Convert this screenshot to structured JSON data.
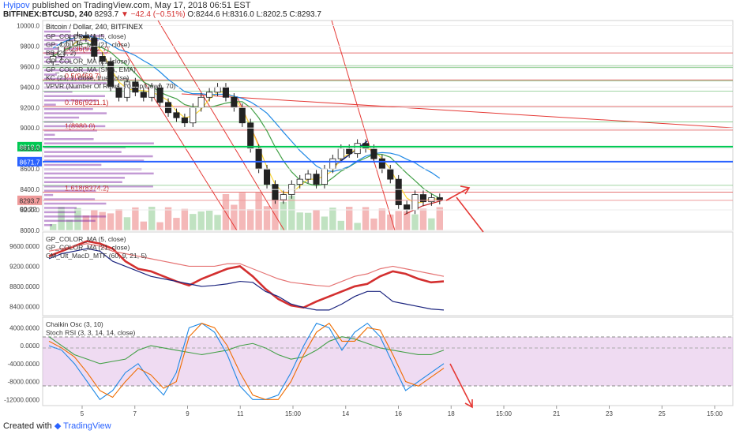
{
  "header": {
    "author": "Hyipov",
    "published": "published on TradingView.com, May 17, 2018 06:51 EST",
    "symbol": "BITFINEX:BTCUSD, 240",
    "last": "8293.7",
    "change": "−42.4 (−0.51%)",
    "ohlc": "O:8244.6 H:8316.0 L:8202.5 C:8293.7"
  },
  "footer": {
    "created_with": "Created with",
    "brand": "TradingView"
  },
  "colors": {
    "up": "#2e7d32",
    "down": "#c62828",
    "blue_level": "#2962ff",
    "green_level": "#00c853",
    "red_level": "#d32f2f",
    "stoch_band": "#e1bee7"
  },
  "chart_data": [
    {
      "type": "candlestick",
      "title": "Bitcoin / Dollar, 240, BITFINEX",
      "indicator_labels": [
        "GP_COLOR_MA (5, close)",
        "GP_COLOR_MA (21, close)",
        "BB (20, 2)",
        "GP_COLOR_MA (21, close)",
        "GP_COLOR_MA (SMA, EMA)",
        "KC (21, 1, close, true, false)",
        "VPVR (Number Of Rows, 70, Up/Down, 70)"
      ],
      "y_ticks": [
        10000.0,
        9800.0,
        9600.0,
        9400.0,
        9200.0,
        9000.0,
        8800.0,
        8600.0,
        8400.0,
        8200.0,
        8000.0
      ],
      "ylim": [
        8000,
        10050
      ],
      "x_ticks": [
        "5",
        "7",
        "9",
        "11",
        "15:00",
        "14",
        "16",
        "18",
        "15:00",
        "21",
        "23",
        "25",
        "15:00"
      ],
      "fib_levels": [
        {
          "label": "0.236(9732.7)",
          "value": 9732.7
        },
        {
          "label": "0.5(9469.7)",
          "value": 9469.7
        },
        {
          "label": "0.786(9211.1)",
          "value": 9211.1
        },
        {
          "label": "1(8980.0)",
          "value": 8980.0
        },
        {
          "label": "1.618(8374.2)",
          "value": 8374.2
        }
      ],
      "price_flags": [
        {
          "label": "8818.0",
          "value": 8818.0,
          "color": "#00c853"
        },
        {
          "label": "8671.7",
          "value": 8671.7,
          "color": "#2962ff"
        },
        {
          "label": "8293.7",
          "value": 8293.7,
          "color": "#ef9a9a"
        }
      ],
      "countdown": "00:22",
      "close": [
        9700,
        9800,
        9850,
        9900,
        9880,
        9700,
        9650,
        9400,
        9300,
        9450,
        9350,
        9300,
        9400,
        9250,
        9150,
        9100,
        9050,
        9200,
        9300,
        9350,
        9400,
        9300,
        9200,
        9050,
        8800,
        8600,
        8450,
        8300,
        8350,
        8450,
        8500,
        8550,
        8450,
        8600,
        8700,
        8800,
        8750,
        8850,
        8800,
        8700,
        8600,
        8500,
        8250,
        8200,
        8350,
        8280,
        8320,
        8293.7
      ]
    },
    {
      "type": "line",
      "title": "",
      "indicator_labels": [
        "GP_COLOR_MA (5, close)",
        "GP_COLOR_MA (21, close)",
        "CM_Ult_MacD_MTF (60, 9, 21, 5)"
      ],
      "y_ticks": [
        9600.0,
        9200.0,
        8800.0,
        8400.0
      ],
      "ylim": [
        8250,
        9850
      ],
      "series": [
        {
          "values": [
            9400,
            9500,
            9600,
            9700,
            9650,
            9550,
            9300,
            9150,
            9100,
            9000,
            8900,
            8820,
            8950,
            9050,
            9150,
            9200,
            9000,
            8750,
            8550,
            8420,
            8380,
            8500,
            8600,
            8700,
            8800,
            8850,
            9000,
            9100,
            9050,
            8950,
            8880,
            8900
          ]
        },
        {
          "values": [
            9500,
            9550,
            9600,
            9650,
            9600,
            9500,
            9450,
            9400,
            9350,
            9300,
            9250,
            9200,
            9200,
            9200,
            9250,
            9250,
            9150,
            9050,
            8950,
            8880,
            8850,
            8820,
            8800,
            8900,
            9000,
            9050,
            9150,
            9200,
            9150,
            9100,
            9050,
            9000
          ]
        },
        {
          "values": [
            9350,
            9450,
            9500,
            9550,
            9500,
            9300,
            9200,
            9100,
            9000,
            8950,
            8900,
            8850,
            8800,
            8820,
            8850,
            8900,
            8880,
            8700,
            8600,
            8450,
            8380,
            8330,
            8330,
            8450,
            8600,
            8700,
            8700,
            8500,
            8450,
            8400,
            8350,
            8330
          ]
        }
      ]
    },
    {
      "type": "line",
      "title": "",
      "indicator_labels": [
        "Chaikin Osc (3, 10)",
        "Stoch RSI (3, 3, 14, 14, close)"
      ],
      "y_ticks": [
        4000.0,
        0.0,
        -4000.0,
        -8000.0,
        -12000.0
      ],
      "ylim": [
        -13000,
        6000
      ],
      "series": [
        {
          "values": [
            2000,
            0,
            -2000,
            -3000,
            -4000,
            -3500,
            -3000,
            -1000,
            0,
            -500,
            -1000,
            -1500,
            -2000,
            -1500,
            -1000,
            0,
            500,
            -500,
            -2000,
            -3000,
            -2500,
            -1000,
            1000,
            2000,
            1500,
            500,
            -500,
            -1000,
            -1500,
            -2000,
            -2000,
            -1000
          ]
        },
        {
          "values": [
            0,
            -1000,
            -4000,
            -8000,
            -12000,
            -10000,
            -6000,
            -4000,
            -8000,
            -11000,
            -6000,
            4000,
            5000,
            3000,
            -2000,
            -9000,
            -12000,
            -12000,
            -11000,
            -6000,
            0,
            5000,
            4000,
            -1000,
            3000,
            5000,
            2000,
            -4000,
            -10000,
            -8000,
            -6000,
            -4000
          ]
        },
        {
          "values": [
            1000,
            -500,
            -2500,
            -6000,
            -10000,
            -11500,
            -8000,
            -5000,
            -6500,
            -9500,
            -8000,
            2000,
            5000,
            4000,
            0,
            -6000,
            -11000,
            -12000,
            -12000,
            -8000,
            -2000,
            3000,
            5000,
            1000,
            1000,
            4000,
            3500,
            -2000,
            -8000,
            -9000,
            -7000,
            -5000
          ]
        }
      ]
    }
  ]
}
